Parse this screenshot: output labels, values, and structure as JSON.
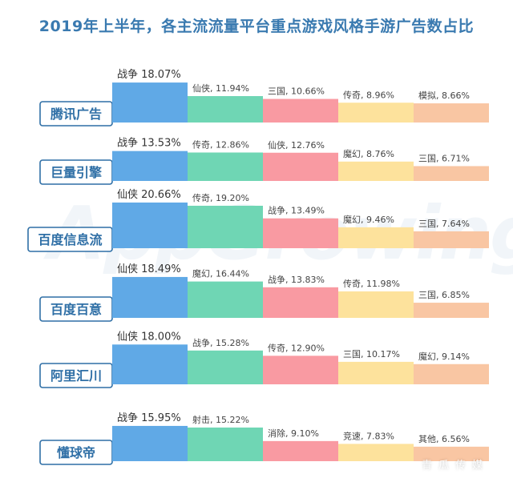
{
  "title": "2019年上半年，各主流流量平台重点游戏风格手游广告数占比",
  "watermark": "AppGrowing",
  "footer_mark": "青瓜传媒",
  "colors": [
    "#60a9e6",
    "#6fd6b4",
    "#f99aa2",
    "#fde29c",
    "#f9c6a3"
  ],
  "platform_box_color": "#2f6fa6",
  "chart_data": {
    "type": "bar",
    "title": "2019年上半年，各主流流量平台重点游戏风格手游广告数占比",
    "unit": "%",
    "platforms": [
      {
        "name": "腾讯广告",
        "segments": [
          {
            "label": "战争",
            "value": 18.07
          },
          {
            "label": "仙侠",
            "value": 11.94
          },
          {
            "label": "三国",
            "value": 10.66
          },
          {
            "label": "传奇",
            "value": 8.96
          },
          {
            "label": "模拟",
            "value": 8.66
          }
        ]
      },
      {
        "name": "巨量引擎",
        "segments": [
          {
            "label": "战争",
            "value": 13.53
          },
          {
            "label": "传奇",
            "value": 12.86
          },
          {
            "label": "仙侠",
            "value": 12.76
          },
          {
            "label": "魔幻",
            "value": 8.76
          },
          {
            "label": "三国",
            "value": 6.71
          }
        ]
      },
      {
        "name": "百度信息流",
        "segments": [
          {
            "label": "仙侠",
            "value": 20.66
          },
          {
            "label": "传奇",
            "value": 19.2
          },
          {
            "label": "战争",
            "value": 13.49
          },
          {
            "label": "魔幻",
            "value": 9.46
          },
          {
            "label": "三国",
            "value": 7.64
          }
        ]
      },
      {
        "name": "百度百意",
        "segments": [
          {
            "label": "仙侠",
            "value": 18.49
          },
          {
            "label": "魔幻",
            "value": 16.44
          },
          {
            "label": "战争",
            "value": 13.83
          },
          {
            "label": "传奇",
            "value": 11.98
          },
          {
            "label": "三国",
            "value": 6.85
          }
        ]
      },
      {
        "name": "阿里汇川",
        "segments": [
          {
            "label": "仙侠",
            "value": 18.0
          },
          {
            "label": "战争",
            "value": 15.28
          },
          {
            "label": "传奇",
            "value": 12.9
          },
          {
            "label": "三国",
            "value": 10.17
          },
          {
            "label": "魔幻",
            "value": 9.14
          }
        ]
      },
      {
        "name": "懂球帝",
        "segments": [
          {
            "label": "战争",
            "value": 15.95
          },
          {
            "label": "射击",
            "value": 15.22
          },
          {
            "label": "消除",
            "value": 9.1
          },
          {
            "label": "竞速",
            "value": 7.83
          },
          {
            "label": "其他",
            "value": 6.56
          }
        ]
      }
    ]
  }
}
